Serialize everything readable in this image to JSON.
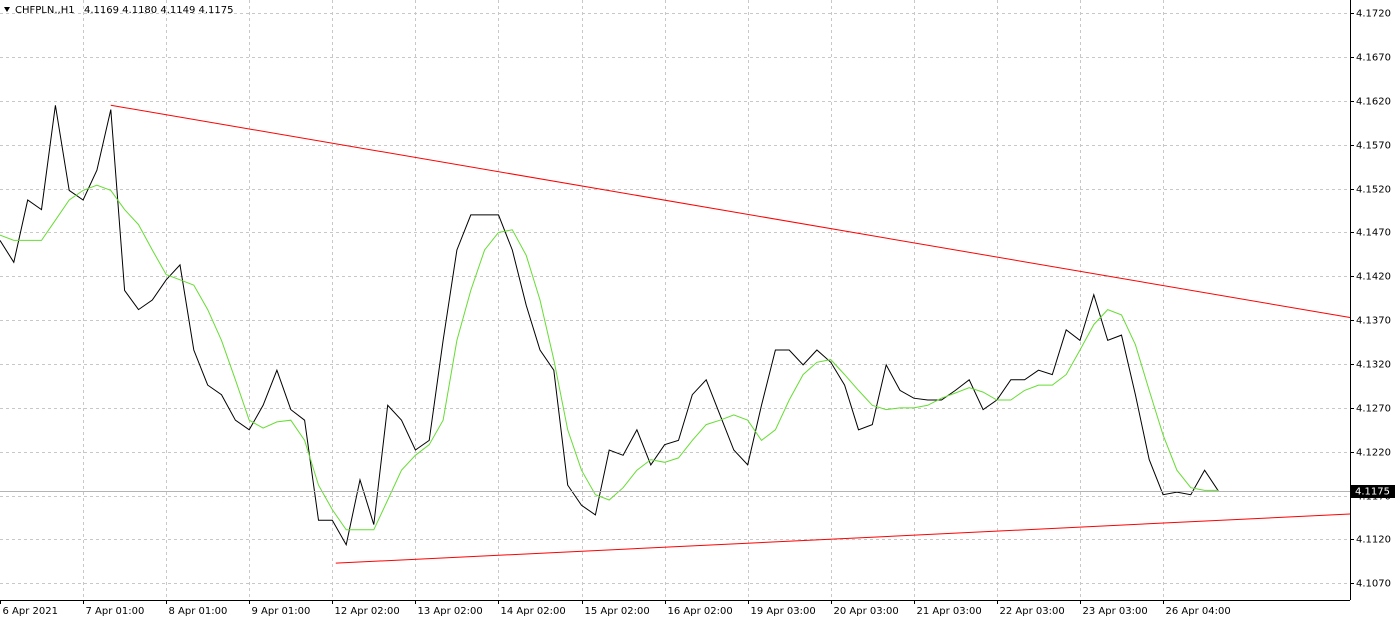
{
  "chart_data": {
    "type": "line",
    "title": "CHFPLN.,H1",
    "subtitle": "4.1169 4.1180 4.1149 4.1175",
    "x": [
      0,
      4,
      8,
      12,
      16,
      20,
      24,
      28,
      32,
      36,
      40,
      44,
      48,
      52,
      56,
      60,
      64,
      68,
      72,
      76,
      80,
      84,
      88,
      92,
      96,
      100,
      104,
      108,
      112,
      116,
      120,
      124,
      128,
      132,
      136,
      140,
      144,
      148,
      152,
      156,
      160,
      164,
      168,
      172,
      176,
      180,
      184,
      188,
      192,
      196,
      200,
      204,
      208,
      212,
      216,
      220,
      224,
      228,
      232,
      236,
      240,
      244,
      248,
      252,
      256,
      260,
      264,
      268,
      272,
      276,
      280,
      284,
      288,
      292,
      296,
      300,
      304,
      308,
      312,
      316,
      320,
      324,
      328,
      332,
      336,
      340,
      344,
      348,
      352
    ],
    "series": [
      {
        "color": "#000000",
        "values": [
          4.1461,
          4.1436,
          4.1507,
          4.1496,
          4.1615,
          4.1518,
          4.1507,
          4.1541,
          4.161,
          4.1404,
          4.1382,
          4.1393,
          4.1416,
          4.1433,
          4.1336,
          4.1296,
          4.1285,
          4.1256,
          4.1245,
          4.1273,
          4.1313,
          4.1268,
          4.1256,
          4.1142,
          4.1142,
          4.1114,
          4.1188,
          4.1137,
          4.1273,
          4.1256,
          4.1222,
          4.1233,
          4.1347,
          4.145,
          4.149,
          4.149,
          4.149,
          4.145,
          4.1387,
          4.1336,
          4.1313,
          4.1182,
          4.1159,
          4.1148,
          4.1222,
          4.1216,
          4.1245,
          4.1205,
          4.1228,
          4.1233,
          4.1285,
          4.1302,
          4.1262,
          4.1222,
          4.1205,
          4.1273,
          4.1336,
          4.1336,
          4.1319,
          4.1336,
          4.1322,
          4.1296,
          4.1245,
          4.1251,
          4.1319,
          4.129,
          4.1281,
          4.1279,
          4.1279,
          4.129,
          4.1302,
          4.1268,
          4.1279,
          4.1302,
          4.1302,
          4.1313,
          4.1308,
          4.1359,
          4.1347,
          4.1399,
          4.1347,
          4.1353,
          4.1285,
          4.1211,
          4.1171,
          4.1174,
          4.1171,
          4.1199,
          4.1175
        ]
      },
      {
        "color": "#66dd33",
        "values": [
          4.1467,
          4.1461,
          4.1461,
          4.1461,
          4.1484,
          4.1507,
          4.1518,
          4.1524,
          4.1518,
          4.1496,
          4.1479,
          4.145,
          4.1422,
          4.1416,
          4.141,
          4.1382,
          4.1347,
          4.1302,
          4.1256,
          4.1247,
          4.1254,
          4.1256,
          4.1233,
          4.1182,
          4.1154,
          4.1131,
          4.1131,
          4.1131,
          4.1165,
          4.1199,
          4.1216,
          4.1228,
          4.1256,
          4.1347,
          4.1404,
          4.145,
          4.147,
          4.1473,
          4.1444,
          4.1393,
          4.1325,
          4.1245,
          4.1199,
          4.1171,
          4.1165,
          4.1179,
          4.1199,
          4.1211,
          4.1208,
          4.1213,
          4.1233,
          4.1251,
          4.1256,
          4.1262,
          4.1256,
          4.1233,
          4.1245,
          4.1279,
          4.1308,
          4.1322,
          4.1325,
          4.1308,
          4.129,
          4.1273,
          4.1268,
          4.127,
          4.127,
          4.1273,
          4.1281,
          4.1287,
          4.1293,
          4.1288,
          4.1279,
          4.1279,
          4.129,
          4.1296,
          4.1296,
          4.1308,
          4.1336,
          4.1365,
          4.1382,
          4.1376,
          4.1342,
          4.129,
          4.1239,
          4.1199,
          4.1179,
          4.1176,
          4.1176
        ]
      }
    ],
    "trendlines": [
      {
        "color": "#ff0000",
        "x": [
          32,
          390
        ],
        "values": [
          4.1615,
          4.1373
        ]
      },
      {
        "color": "#ff0000",
        "x": [
          97,
          390
        ],
        "values": [
          4.1093,
          4.1149
        ]
      }
    ],
    "last_price": 4.1175,
    "xlim": [
      0,
      390
    ],
    "xticks": [
      {
        "value": 0,
        "label": "6 Apr 2021"
      },
      {
        "value": 24,
        "label": "7 Apr 01:00"
      },
      {
        "value": 48,
        "label": "8 Apr 01:00"
      },
      {
        "value": 72,
        "label": "9 Apr 01:00"
      },
      {
        "value": 96,
        "label": "12 Apr 02:00"
      },
      {
        "value": 120,
        "label": "13 Apr 02:00"
      },
      {
        "value": 144,
        "label": "14 Apr 02:00"
      },
      {
        "value": 168,
        "label": "15 Apr 02:00"
      },
      {
        "value": 192,
        "label": "16 Apr 02:00"
      },
      {
        "value": 216,
        "label": "19 Apr 03:00"
      },
      {
        "value": 240,
        "label": "20 Apr 03:00"
      },
      {
        "value": 264,
        "label": "21 Apr 03:00"
      },
      {
        "value": 288,
        "label": "22 Apr 03:00"
      },
      {
        "value": 312,
        "label": "23 Apr 03:00"
      },
      {
        "value": 336,
        "label": "26 Apr 04:00"
      }
    ],
    "ylim": [
      4.1051,
      4.1735
    ],
    "yticks": [
      {
        "value": 4.172,
        "label": "4.1720"
      },
      {
        "value": 4.167,
        "label": "4.1670"
      },
      {
        "value": 4.162,
        "label": "4.1620"
      },
      {
        "value": 4.157,
        "label": "4.1570"
      },
      {
        "value": 4.152,
        "label": "4.1520"
      },
      {
        "value": 4.147,
        "label": "4.1470"
      },
      {
        "value": 4.142,
        "label": "4.1420"
      },
      {
        "value": 4.137,
        "label": "4.1370"
      },
      {
        "value": 4.132,
        "label": "4.1320"
      },
      {
        "value": 4.127,
        "label": "4.1270"
      },
      {
        "value": 4.122,
        "label": "4.1220"
      },
      {
        "value": 4.117,
        "label": "4.1170"
      },
      {
        "value": 4.112,
        "label": "4.1120"
      },
      {
        "value": 4.107,
        "label": "4.1070"
      }
    ],
    "grid": true
  }
}
